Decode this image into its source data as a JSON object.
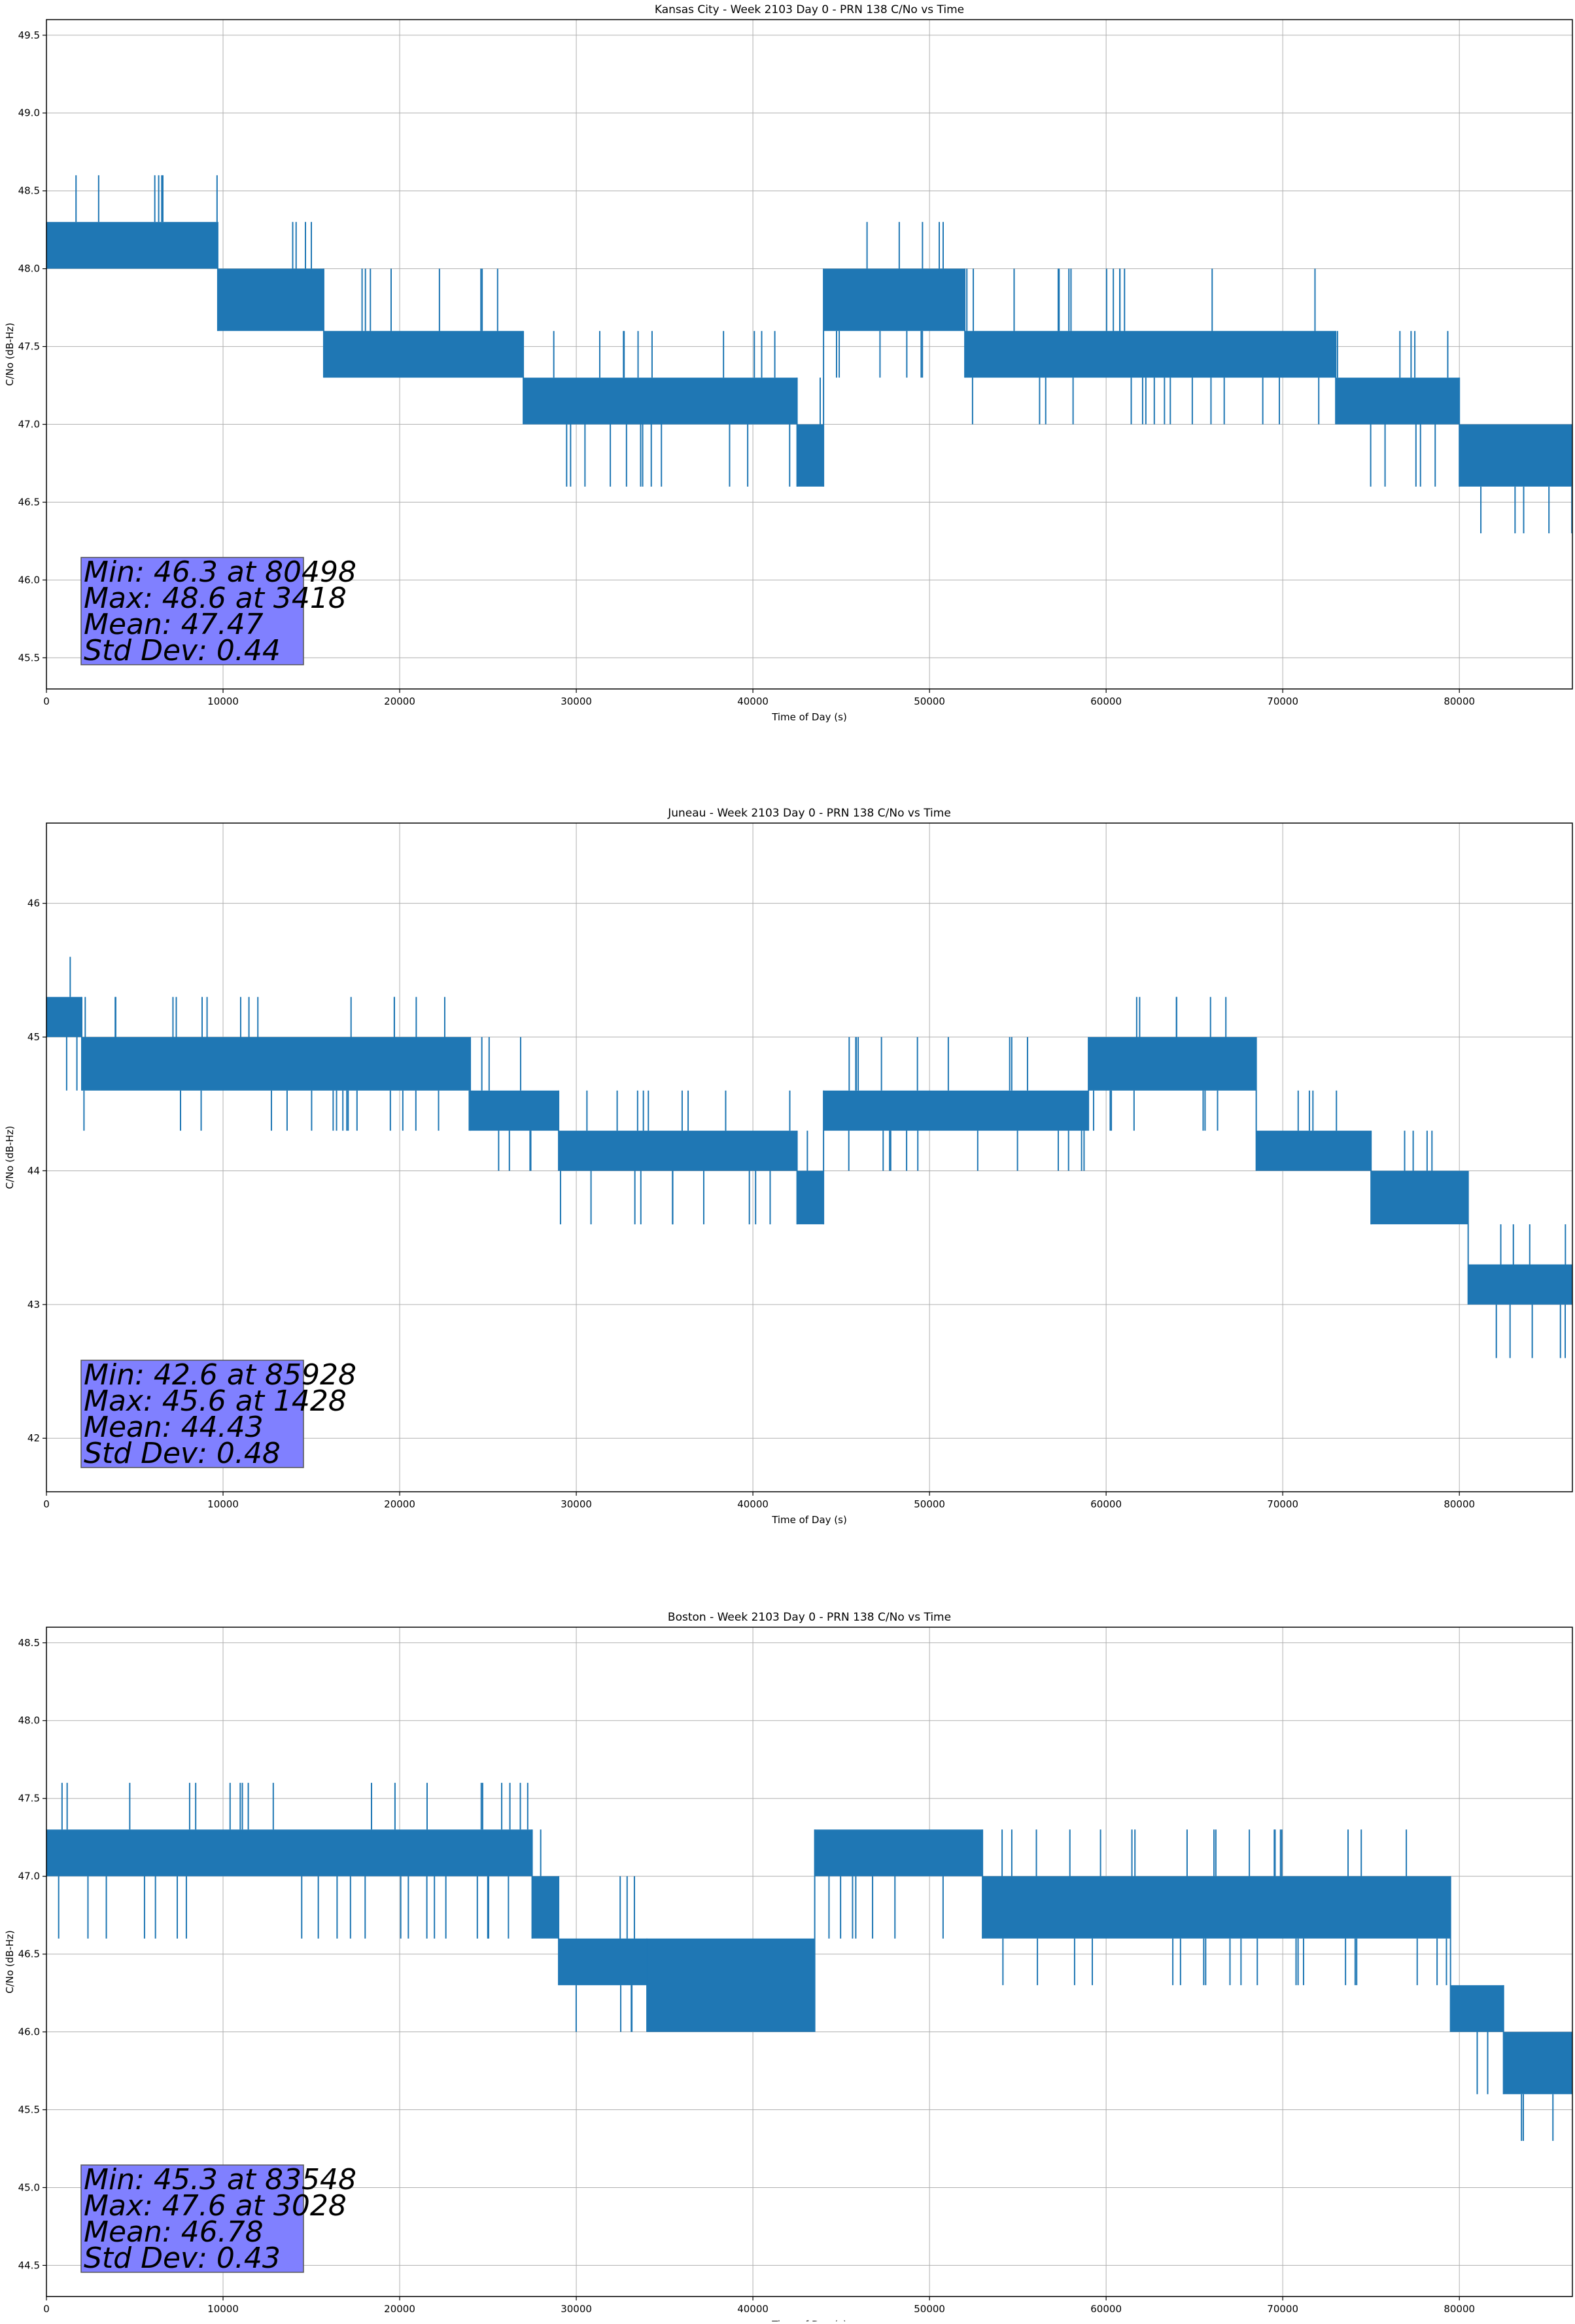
{
  "chart_data": [
    {
      "type": "line",
      "title": "Kansas City - Week 2103 Day 0 - PRN 138 C/No vs Time",
      "xlabel": "Time of Day (s)",
      "ylabel": "C/No (dB-Hz)",
      "xlim": [
        0,
        86400
      ],
      "ylim": [
        45.3,
        49.6
      ],
      "xticks": [
        0,
        10000,
        20000,
        30000,
        40000,
        50000,
        60000,
        70000,
        80000
      ],
      "xtick_labels": [
        "0",
        "10000",
        "20000",
        "30000",
        "40000",
        "50000",
        "60000",
        "70000",
        "80000"
      ],
      "yticks": [
        45.5,
        46.0,
        46.5,
        47.0,
        47.5,
        48.0,
        48.5,
        49.0,
        49.5
      ],
      "ytick_labels": [
        "45.5",
        "46.0",
        "46.5",
        "47.0",
        "47.5",
        "48.0",
        "48.5",
        "49.0",
        "49.5"
      ],
      "grid": true,
      "series": [
        {
          "color": "#1f77b4",
          "segments": [
            {
              "x": [
                0,
                9700
              ],
              "low": 48.0,
              "high": 48.3,
              "spikes_up": 48.6,
              "spikes_down": 48.0
            },
            {
              "x": [
                9700,
                15700
              ],
              "low": 47.6,
              "high": 48.0,
              "spikes_up": 48.3,
              "spikes_down": 47.6
            },
            {
              "x": [
                15700,
                27000
              ],
              "low": 47.3,
              "high": 47.6,
              "spikes_up": 48.0,
              "spikes_down": 47.3
            },
            {
              "x": [
                27000,
                42500
              ],
              "low": 47.0,
              "high": 47.3,
              "spikes_up": 47.6,
              "spikes_down": 46.6
            },
            {
              "x": [
                42500,
                44000
              ],
              "low": 46.6,
              "high": 47.0,
              "spikes_up": 47.3,
              "spikes_down": 46.6
            },
            {
              "x": [
                44000,
                52000
              ],
              "low": 47.6,
              "high": 48.0,
              "spikes_up": 48.3,
              "spikes_down": 47.3
            },
            {
              "x": [
                52000,
                73000
              ],
              "low": 47.3,
              "high": 47.6,
              "spikes_up": 48.0,
              "spikes_down": 47.0
            },
            {
              "x": [
                73000,
                80000
              ],
              "low": 47.0,
              "high": 47.3,
              "spikes_up": 47.6,
              "spikes_down": 46.6
            },
            {
              "x": [
                80000,
                86400
              ],
              "low": 46.6,
              "high": 47.0,
              "spikes_up": 47.0,
              "spikes_down": 46.3
            }
          ]
        }
      ],
      "annotation": {
        "text": [
          "Min: 46.3 at 80498",
          "Max: 48.6 at 3418",
          "Mean: 47.47",
          "Std Dev: 0.44"
        ],
        "box_color": "#8080ff"
      }
    },
    {
      "type": "line",
      "title": "Juneau - Week 2103 Day 0 - PRN 138 C/No vs Time",
      "xlabel": "Time of Day (s)",
      "ylabel": "C/No (dB-Hz)",
      "xlim": [
        0,
        86400
      ],
      "ylim": [
        41.6,
        46.6
      ],
      "xticks": [
        0,
        10000,
        20000,
        30000,
        40000,
        50000,
        60000,
        70000,
        80000
      ],
      "xtick_labels": [
        "0",
        "10000",
        "20000",
        "30000",
        "40000",
        "50000",
        "60000",
        "70000",
        "80000"
      ],
      "yticks": [
        42,
        43,
        44,
        45,
        46
      ],
      "ytick_labels": [
        "42",
        "43",
        "44",
        "45",
        "46"
      ],
      "grid": true,
      "series": [
        {
          "color": "#1f77b4",
          "segments": [
            {
              "x": [
                0,
                2000
              ],
              "low": 45.0,
              "high": 45.3,
              "spikes_up": 45.6,
              "spikes_down": 44.6
            },
            {
              "x": [
                2000,
                24000
              ],
              "low": 44.6,
              "high": 45.0,
              "spikes_up": 45.3,
              "spikes_down": 44.3
            },
            {
              "x": [
                24000,
                29000
              ],
              "low": 44.3,
              "high": 44.6,
              "spikes_up": 45.0,
              "spikes_down": 44.0
            },
            {
              "x": [
                29000,
                42500
              ],
              "low": 44.0,
              "high": 44.3,
              "spikes_up": 44.6,
              "spikes_down": 43.6
            },
            {
              "x": [
                42500,
                44000
              ],
              "low": 43.6,
              "high": 44.0,
              "spikes_up": 44.3,
              "spikes_down": 43.6
            },
            {
              "x": [
                44000,
                59000
              ],
              "low": 44.3,
              "high": 44.6,
              "spikes_up": 45.0,
              "spikes_down": 44.0
            },
            {
              "x": [
                59000,
                68500
              ],
              "low": 44.6,
              "high": 45.0,
              "spikes_up": 45.3,
              "spikes_down": 44.3
            },
            {
              "x": [
                68500,
                75000
              ],
              "low": 44.0,
              "high": 44.3,
              "spikes_up": 44.6,
              "spikes_down": 44.0
            },
            {
              "x": [
                75000,
                80500
              ],
              "low": 43.6,
              "high": 44.0,
              "spikes_up": 44.3,
              "spikes_down": 43.6
            },
            {
              "x": [
                80500,
                86400
              ],
              "low": 43.0,
              "high": 43.3,
              "spikes_up": 43.6,
              "spikes_down": 42.6
            }
          ]
        }
      ],
      "annotation": {
        "text": [
          "Min: 42.6 at 85928",
          "Max: 45.6 at 1428",
          "Mean: 44.43",
          "Std Dev: 0.48"
        ],
        "box_color": "#8080ff"
      }
    },
    {
      "type": "line",
      "title": "Boston - Week 2103 Day 0 - PRN 138 C/No vs Time",
      "xlabel": "Time of Day (s)",
      "ylabel": "C/No (dB-Hz)",
      "xlim": [
        0,
        86400
      ],
      "ylim": [
        44.3,
        48.6
      ],
      "xticks": [
        0,
        10000,
        20000,
        30000,
        40000,
        50000,
        60000,
        70000,
        80000
      ],
      "xtick_labels": [
        "0",
        "10000",
        "20000",
        "30000",
        "40000",
        "50000",
        "60000",
        "70000",
        "80000"
      ],
      "yticks": [
        44.5,
        45.0,
        45.5,
        46.0,
        46.5,
        47.0,
        47.5,
        48.0,
        48.5
      ],
      "ytick_labels": [
        "44.5",
        "45.0",
        "45.5",
        "46.0",
        "46.5",
        "47.0",
        "47.5",
        "48.0",
        "48.5"
      ],
      "grid": true,
      "series": [
        {
          "color": "#1f77b4",
          "segments": [
            {
              "x": [
                0,
                27500
              ],
              "low": 47.0,
              "high": 47.3,
              "spikes_up": 47.6,
              "spikes_down": 46.6
            },
            {
              "x": [
                27500,
                29000
              ],
              "low": 46.6,
              "high": 47.0,
              "spikes_up": 47.3,
              "spikes_down": 46.6
            },
            {
              "x": [
                29000,
                34000
              ],
              "low": 46.3,
              "high": 46.6,
              "spikes_up": 47.0,
              "spikes_down": 46.0
            },
            {
              "x": [
                34000,
                43500
              ],
              "low": 46.0,
              "high": 46.6,
              "spikes_up": 46.6,
              "spikes_down": 46.0
            },
            {
              "x": [
                43500,
                53000
              ],
              "low": 47.0,
              "high": 47.3,
              "spikes_up": 47.3,
              "spikes_down": 46.6
            },
            {
              "x": [
                53000,
                79500
              ],
              "low": 46.6,
              "high": 47.0,
              "spikes_up": 47.3,
              "spikes_down": 46.3
            },
            {
              "x": [
                79500,
                82500
              ],
              "low": 46.0,
              "high": 46.3,
              "spikes_up": 46.3,
              "spikes_down": 45.6
            },
            {
              "x": [
                82500,
                86400
              ],
              "low": 45.6,
              "high": 46.0,
              "spikes_up": 46.0,
              "spikes_down": 45.3
            }
          ]
        }
      ],
      "annotation": {
        "text": [
          "Min: 45.3 at 83548",
          "Max: 47.6 at 3028",
          "Mean: 46.78",
          "Std Dev: 0.43"
        ],
        "box_color": "#8080ff"
      }
    }
  ]
}
